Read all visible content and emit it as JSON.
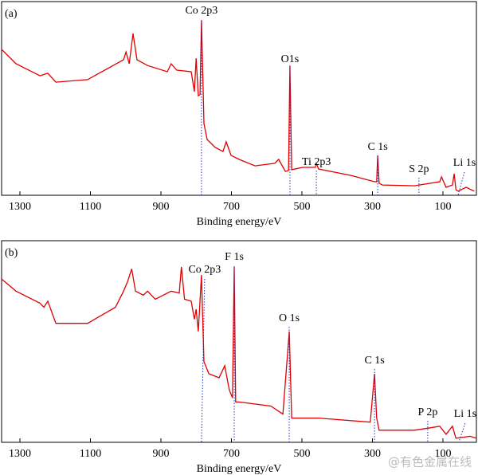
{
  "chart_data": [
    {
      "type": "line",
      "title": "(a)",
      "xlabel": "Binding energy/eV",
      "xlim": [
        1352,
        5
      ],
      "xticks": [
        1300,
        1100,
        900,
        700,
        500,
        300,
        100
      ],
      "ylim": [
        0,
        100
      ],
      "color": "#e00000",
      "x": [
        1352,
        1311,
        1243,
        1221,
        1198,
        1108,
        1006,
        999,
        990,
        979,
        968,
        938,
        882,
        871,
        855,
        814,
        805,
        800,
        794,
        789,
        785,
        778,
        769,
        746,
        724,
        715,
        701,
        678,
        633,
        577,
        566,
        547,
        538,
        534,
        529,
        498,
        462,
        459,
        453,
        362,
        294,
        288,
        285,
        281,
        272,
        181,
        109,
        104,
        91,
        73,
        68,
        63,
        57,
        34,
        11
      ],
      "values": [
        75.3,
        67.9,
        61.7,
        63,
        58.4,
        59.7,
        70,
        74,
        67.9,
        83.5,
        70,
        67,
        63.8,
        67.9,
        64.6,
        63.8,
        53.5,
        70.8,
        51.4,
        52,
        90.5,
        37,
        28.8,
        24.7,
        22.6,
        27.6,
        20.6,
        18.5,
        15.2,
        16.5,
        18.5,
        12.3,
        12.8,
        67,
        13.2,
        14.4,
        14.4,
        16.5,
        13.6,
        10.3,
        7,
        7,
        20.6,
        6.2,
        5.3,
        4.9,
        7,
        9.5,
        4.1,
        5.3,
        11.1,
        2.9,
        2.1,
        4.1,
        2.1
      ],
      "annotations": [
        {
          "text": "Co 2p3",
          "x": 785
        },
        {
          "text": "O1s",
          "x": 534
        },
        {
          "text": "Ti 2p3",
          "x": 459
        },
        {
          "text": "C 1s",
          "x": 285
        },
        {
          "text": "S 2p",
          "x": 168
        },
        {
          "text": "Li 1s",
          "x": 57
        }
      ]
    },
    {
      "type": "line",
      "title": "(b)",
      "xlabel": "Binding energy/eV",
      "xlim": [
        1352,
        5
      ],
      "xticks": [
        1300,
        1100,
        900,
        700,
        500,
        300,
        100
      ],
      "ylim": [
        0,
        100
      ],
      "color": "#e00000",
      "x": [
        1352,
        1311,
        1243,
        1232,
        1221,
        1198,
        1108,
        1029,
        1006,
        994,
        983,
        972,
        950,
        938,
        916,
        871,
        848,
        842,
        833,
        814,
        805,
        800,
        794,
        785,
        778,
        764,
        735,
        719,
        706,
        697,
        692,
        688,
        678,
        588,
        554,
        536,
        529,
        453,
        306,
        294,
        288,
        281,
        181,
        143,
        109,
        91,
        73,
        63,
        23,
        5
      ],
      "values": [
        81,
        75,
        69,
        67,
        70,
        59,
        59,
        67,
        75,
        80,
        86,
        75,
        73,
        75,
        71,
        75,
        74,
        87,
        71,
        70,
        61,
        66,
        55,
        83,
        40,
        34,
        32,
        38,
        26,
        22,
        87,
        20,
        20,
        18,
        14,
        55,
        12,
        12,
        10,
        34,
        12,
        6,
        6,
        7,
        8,
        4,
        8,
        2,
        3,
        2
      ],
      "annotations": [
        {
          "text": "Co 2p3",
          "x": 785
        },
        {
          "text": "F 1s",
          "x": 692
        },
        {
          "text": "O 1s",
          "x": 536
        },
        {
          "text": "C 1s",
          "x": 294
        },
        {
          "text": "P 2p",
          "x": 143
        },
        {
          "text": "Li 1s",
          "x": 55
        }
      ]
    }
  ],
  "watermark": "@有色金属在线"
}
